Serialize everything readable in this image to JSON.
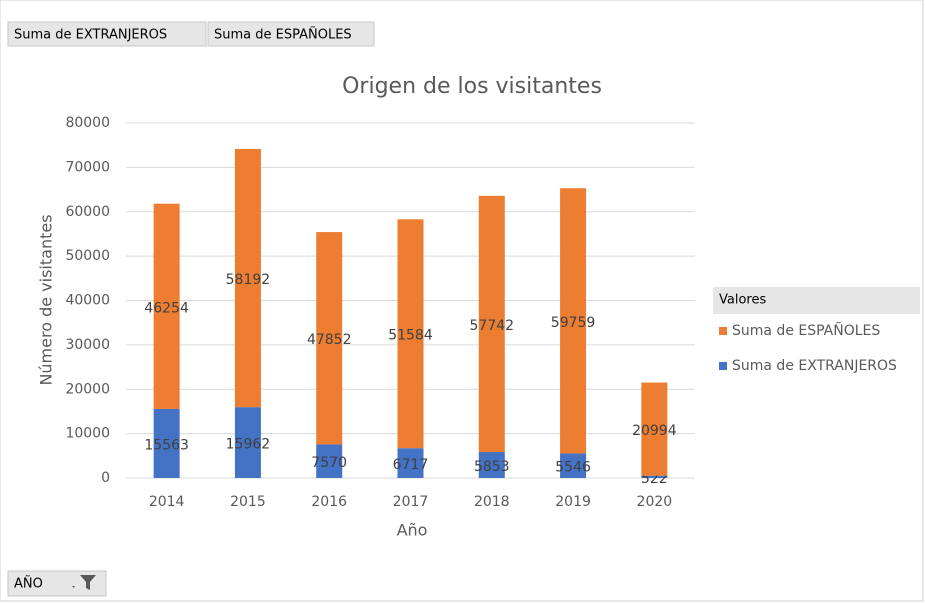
{
  "chart_data": {
    "type": "stacked_bar",
    "title": "Origen de los visitantes",
    "x_label": "Año",
    "y_label": "Número de visitantes",
    "categories": [
      "2014",
      "2015",
      "2016",
      "2017",
      "2018",
      "2019",
      "2020"
    ],
    "series": [
      {
        "name": "Suma de EXTRANJEROS",
        "color": "#4472c4",
        "values": [
          15563,
          15962,
          7570,
          6717,
          5853,
          5546,
          522
        ]
      },
      {
        "name": "Suma de ESPAÑOLES",
        "color": "#ed7d31",
        "values": [
          46254,
          58192,
          47852,
          51584,
          57742,
          59759,
          20994
        ]
      }
    ],
    "ylim": [
      0,
      80000
    ],
    "yticks": [
      0,
      10000,
      20000,
      30000,
      40000,
      50000,
      60000,
      70000,
      80000
    ],
    "grid": true,
    "legend_title": "Valores",
    "legend_position": "right",
    "filter_field": "AÑO"
  }
}
